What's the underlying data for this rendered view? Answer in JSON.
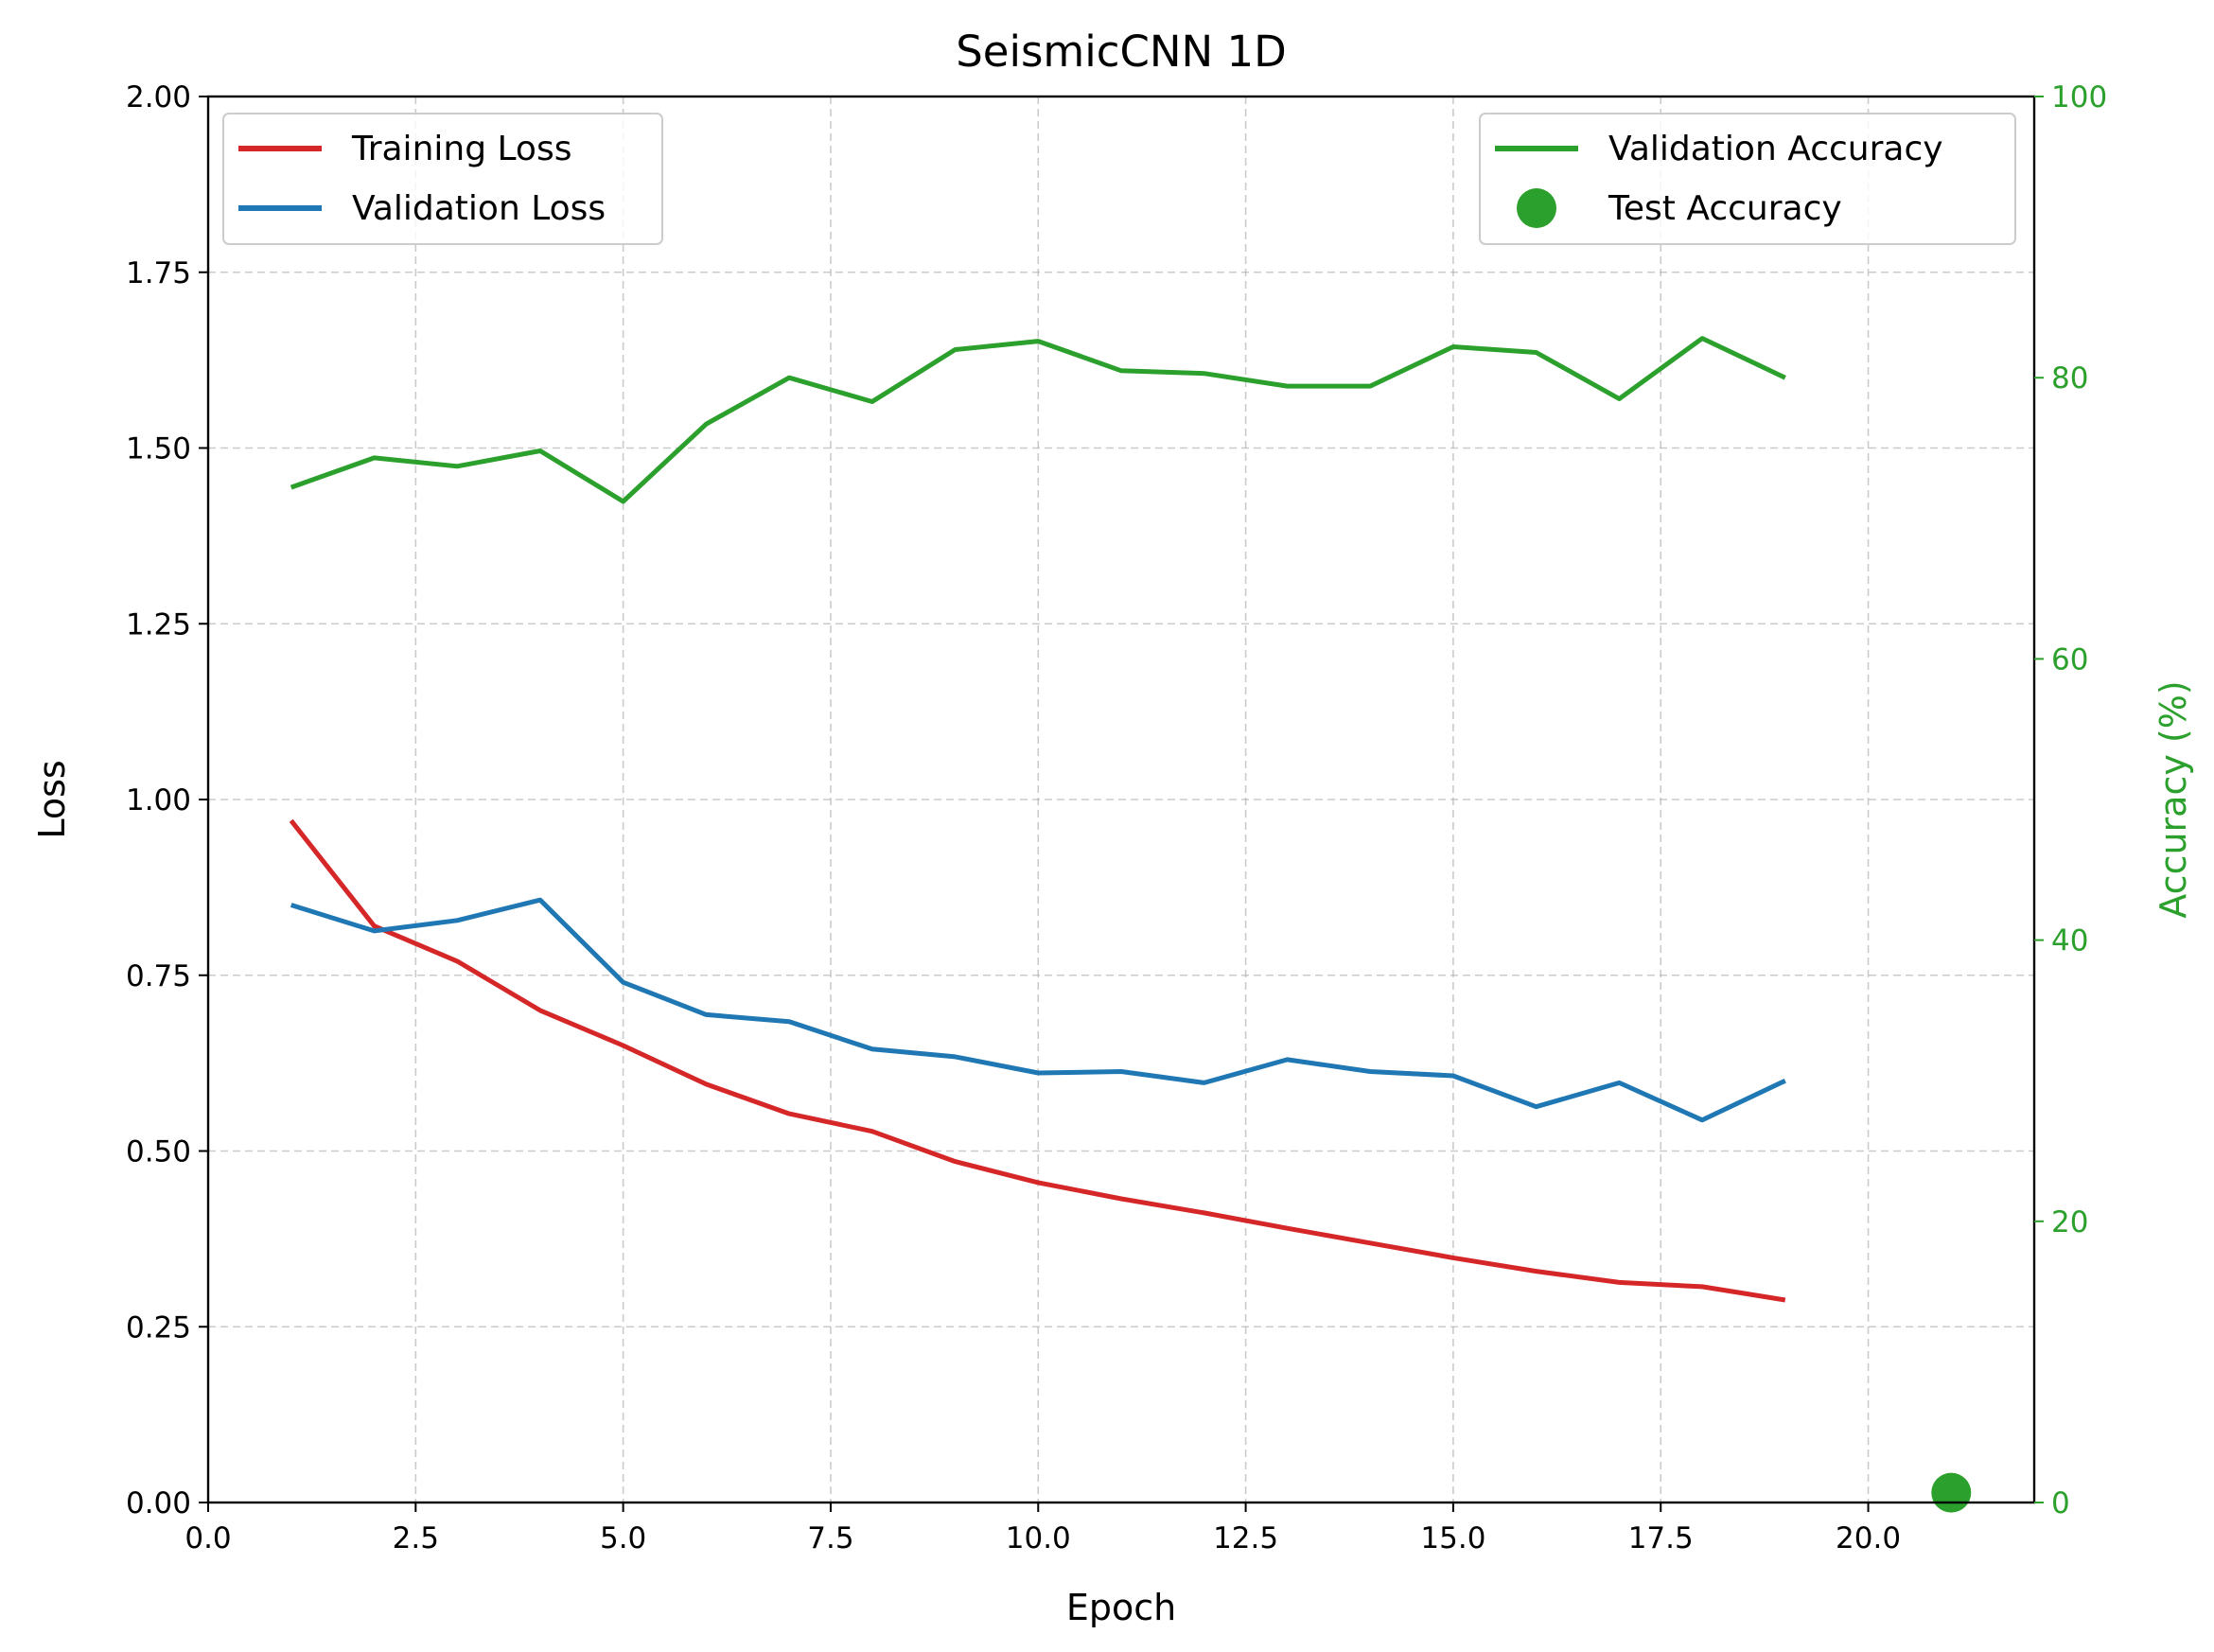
{
  "chart_data": {
    "type": "line",
    "title": "SeismicCNN 1D",
    "xlabel": "Epoch",
    "ylabel": "Loss",
    "y2label": "Accuracy (%)",
    "xlim": [
      0,
      22
    ],
    "ylim": [
      0,
      2.0
    ],
    "y2lim": [
      0,
      100
    ],
    "xticks": [
      "0.0",
      "2.5",
      "5.0",
      "7.5",
      "10.0",
      "12.5",
      "15.0",
      "17.5",
      "20.0"
    ],
    "yticks": [
      "0.00",
      "0.25",
      "0.50",
      "0.75",
      "1.00",
      "1.25",
      "1.50",
      "1.75",
      "2.00"
    ],
    "y2ticks": [
      "0",
      "20",
      "40",
      "60",
      "80",
      "100"
    ],
    "grid": true,
    "legend_left_placement": "upper-left",
    "legend_right_placement": "upper-right",
    "x": [
      1,
      2,
      3,
      4,
      5,
      6,
      7,
      8,
      9,
      10,
      11,
      12,
      13,
      14,
      15,
      16,
      17,
      18,
      19
    ],
    "series": [
      {
        "name": "Training Loss",
        "axis": "left",
        "color": "#d62728",
        "values": [
          0.97,
          0.82,
          0.77,
          0.7,
          0.65,
          0.595,
          0.553,
          0.528,
          0.485,
          0.455,
          0.432,
          0.412,
          0.39,
          0.369,
          0.348,
          0.329,
          0.313,
          0.307,
          0.288
        ]
      },
      {
        "name": "Validation Loss",
        "axis": "left",
        "color": "#1f77b4",
        "values": [
          0.85,
          0.813,
          0.828,
          0.857,
          0.74,
          0.694,
          0.684,
          0.645,
          0.634,
          0.611,
          0.613,
          0.597,
          0.63,
          0.613,
          0.607,
          0.563,
          0.597,
          0.544,
          0.6
        ]
      },
      {
        "name": "Validation Accuracy",
        "axis": "right",
        "color": "#2ca02c",
        "values": [
          72.2,
          74.3,
          73.7,
          74.8,
          71.2,
          76.7,
          80.0,
          78.3,
          82.0,
          82.6,
          80.5,
          80.3,
          79.4,
          79.4,
          82.2,
          81.8,
          78.5,
          82.8,
          80.0
        ]
      }
    ],
    "points": [
      {
        "name": "Test Accuracy",
        "axis": "right",
        "color": "#2ca02c",
        "x": 21,
        "y": 0.7
      }
    ],
    "accent_colors": {
      "right_axis": "#2ca02c"
    }
  }
}
